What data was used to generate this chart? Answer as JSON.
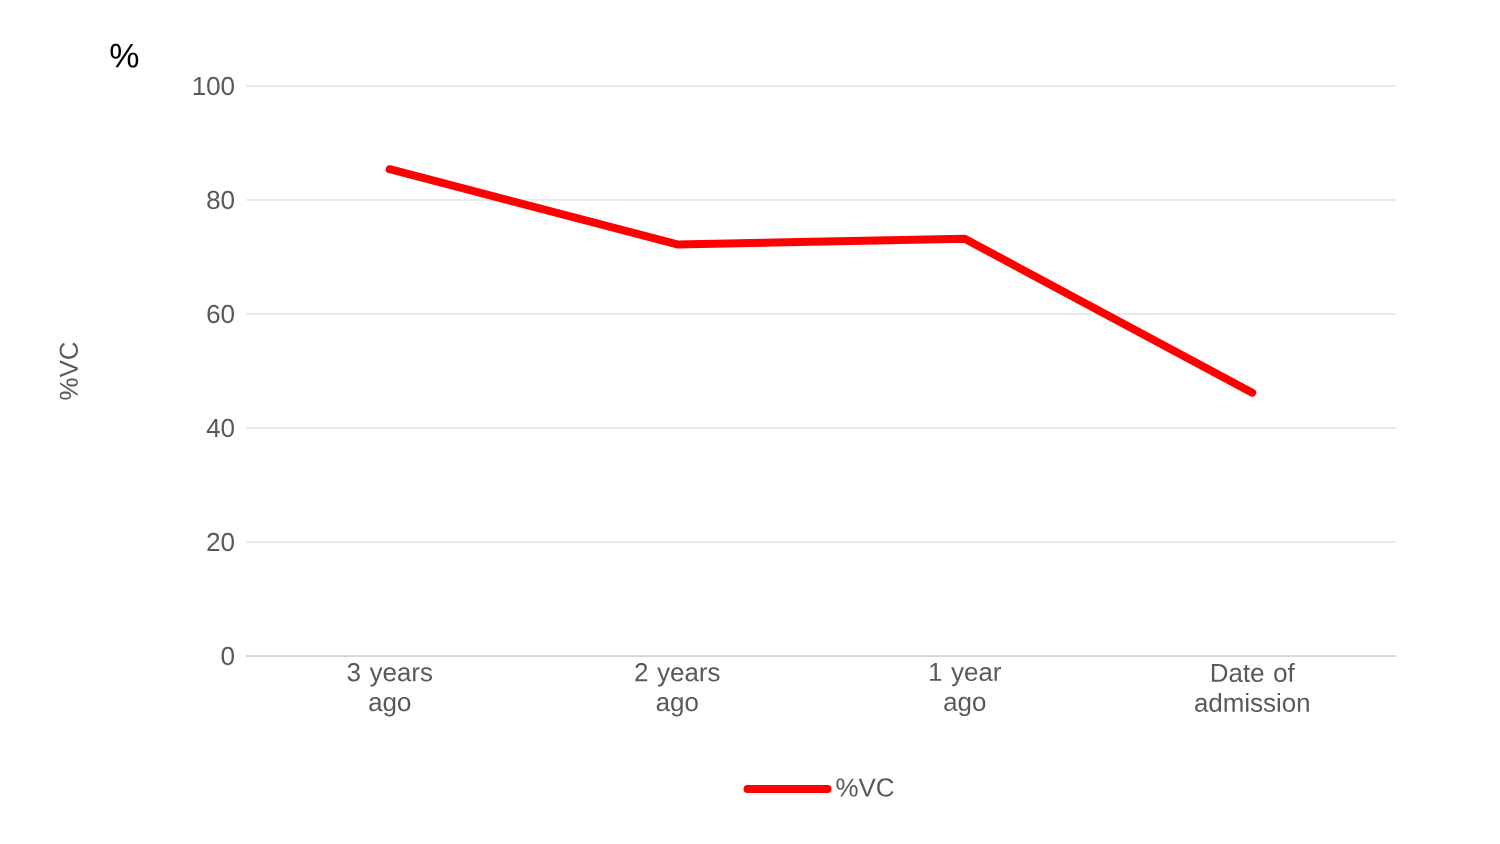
{
  "chart_data": {
    "type": "line",
    "ylabel": "%VC",
    "annotations": [
      "%"
    ],
    "categories": [
      "3 years ago",
      "2 years ago",
      "1 year ago",
      "Date of admission"
    ],
    "series": [
      {
        "name": "%VC",
        "color": "#ff0000",
        "values": [
          85.4,
          72.2,
          73.2,
          46.2
        ]
      }
    ],
    "ylim": [
      0,
      100
    ],
    "yticks": [
      0,
      20,
      40,
      60,
      80,
      100
    ],
    "grid": "y",
    "legend": "bottom",
    "marker": "none",
    "line_style": "solid"
  }
}
